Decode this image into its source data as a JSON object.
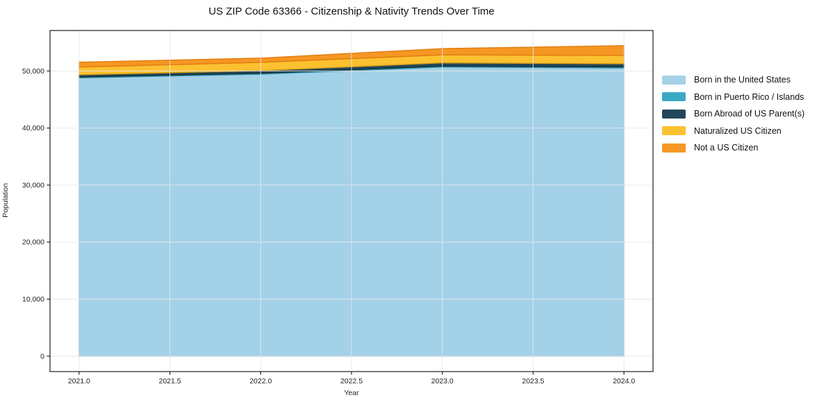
{
  "chart_data": {
    "type": "area",
    "stacked": true,
    "title": "US ZIP Code 63366 - Citizenship & Nativity Trends Over Time",
    "xlabel": "Year",
    "ylabel": "Population",
    "x": [
      2021,
      2022,
      2023,
      2024
    ],
    "series": [
      {
        "name": "Born in the United States",
        "color": "#a3d1e8",
        "edge": "#7fb8d6",
        "values": [
          48800,
          49450,
          50700,
          50550
        ]
      },
      {
        "name": "Born in Puerto Rico / Islands",
        "color": "#3aa8c3",
        "edge": "#2f8fa8",
        "values": [
          150,
          160,
          170,
          170
        ]
      },
      {
        "name": "Born Abroad of US Parent(s)",
        "color": "#21475a",
        "edge": "#16333f",
        "values": [
          400,
          450,
          560,
          560
        ]
      },
      {
        "name": "Naturalized US Citizen",
        "color": "#fcc130",
        "edge": "#d9a018",
        "values": [
          1340,
          1460,
          1400,
          1460
        ]
      },
      {
        "name": "Not a US Citizen",
        "color": "#f79723",
        "edge": "#e27d12",
        "values": [
          850,
          730,
          1090,
          1700
        ]
      }
    ],
    "xticks": [
      2021.0,
      2021.5,
      2022.0,
      2022.5,
      2023.0,
      2023.5,
      2024.0
    ],
    "xtick_labels": [
      "2021.0",
      "2021.5",
      "2022.0",
      "2022.5",
      "2023.0",
      "2023.5",
      "2024.0"
    ],
    "yticks": [
      0,
      10000,
      20000,
      30000,
      40000,
      50000
    ],
    "ytick_labels": [
      "0",
      "10,000",
      "20,000",
      "30,000",
      "40,000",
      "50,000"
    ],
    "xlim": [
      2020.84,
      2024.16
    ],
    "ylim": [
      -2700,
      57100
    ],
    "grid": true,
    "grid_color": "#e7e7e7",
    "spine_color": "#202020",
    "legend_position": "right-of-plot"
  }
}
